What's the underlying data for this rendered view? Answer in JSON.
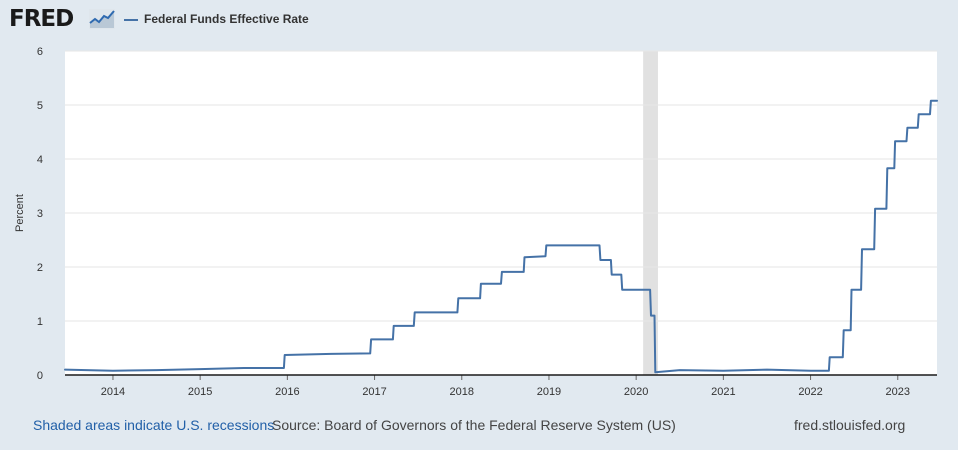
{
  "header": {
    "logo_text": "FRED",
    "logo_icon": "line-graph-icon",
    "legend_label": "Federal Funds Effective Rate",
    "series_color": "#4572a7"
  },
  "footer": {
    "recession_note": "Shaded areas indicate U.S. recessions",
    "source": "Source: Board of Governors of the Federal Reserve System (US)",
    "url": "fred.stlouisfed.org"
  },
  "chart_data": {
    "type": "line",
    "title": "",
    "xlabel": "",
    "ylabel": "Percent",
    "xlim": [
      2013.45,
      2023.45
    ],
    "ylim": [
      0,
      6
    ],
    "yticks": [
      0,
      1,
      2,
      3,
      4,
      5,
      6
    ],
    "xticks": [
      2014,
      2015,
      2016,
      2017,
      2018,
      2019,
      2020,
      2021,
      2022,
      2023
    ],
    "xtick_labels": [
      "2014",
      "2015",
      "2016",
      "2017",
      "2018",
      "2019",
      "2020",
      "2021",
      "2022",
      "2023"
    ],
    "grid": true,
    "recessions": [
      [
        2020.08,
        2020.25
      ]
    ],
    "series": [
      {
        "name": "Federal Funds Effective Rate",
        "color": "#4572a7",
        "x": [
          2013.45,
          2014.0,
          2014.5,
          2015.0,
          2015.5,
          2015.96,
          2015.97,
          2016.5,
          2016.95,
          2016.96,
          2017.21,
          2017.22,
          2017.45,
          2017.46,
          2017.95,
          2017.96,
          2018.21,
          2018.22,
          2018.45,
          2018.46,
          2018.71,
          2018.72,
          2018.96,
          2018.97,
          2019.58,
          2019.59,
          2019.71,
          2019.72,
          2019.83,
          2019.84,
          2020.16,
          2020.17,
          2020.21,
          2020.22,
          2020.5,
          2021.0,
          2021.5,
          2022.0,
          2022.21,
          2022.22,
          2022.37,
          2022.38,
          2022.46,
          2022.47,
          2022.58,
          2022.59,
          2022.73,
          2022.74,
          2022.87,
          2022.88,
          2022.96,
          2022.97,
          2023.1,
          2023.11,
          2023.23,
          2023.24,
          2023.37,
          2023.38,
          2023.45
        ],
        "y": [
          0.1,
          0.08,
          0.09,
          0.11,
          0.13,
          0.13,
          0.37,
          0.39,
          0.4,
          0.66,
          0.66,
          0.91,
          0.91,
          1.16,
          1.16,
          1.42,
          1.42,
          1.69,
          1.69,
          1.91,
          1.91,
          2.18,
          2.2,
          2.4,
          2.4,
          2.13,
          2.13,
          1.86,
          1.86,
          1.58,
          1.58,
          1.1,
          1.1,
          0.05,
          0.09,
          0.08,
          0.1,
          0.08,
          0.08,
          0.33,
          0.33,
          0.83,
          0.83,
          1.58,
          1.58,
          2.33,
          2.33,
          3.08,
          3.08,
          3.83,
          3.83,
          4.33,
          4.33,
          4.58,
          4.58,
          4.83,
          4.83,
          5.08,
          5.08
        ]
      }
    ]
  }
}
